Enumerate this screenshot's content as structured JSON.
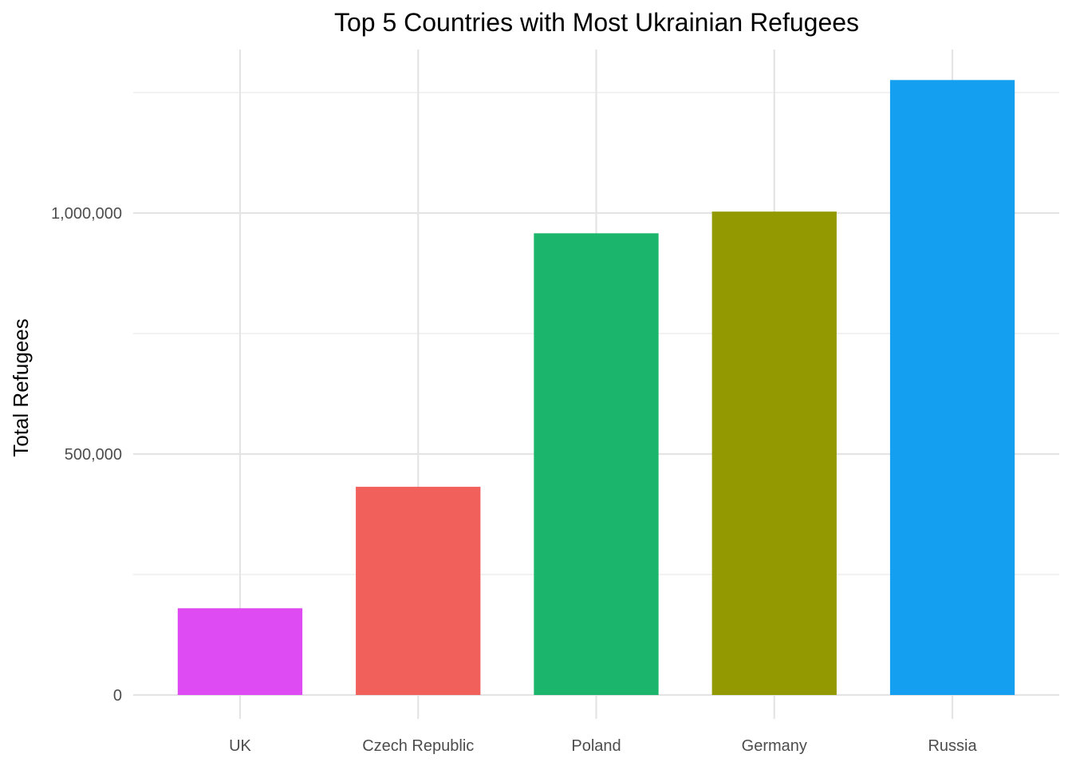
{
  "chart_data": {
    "type": "bar",
    "title": "Top 5 Countries with Most Ukrainian Refugees",
    "xlabel": "",
    "ylabel": "Total Refugees",
    "categories": [
      "UK",
      "Czech Republic",
      "Poland",
      "Germany",
      "Russia"
    ],
    "values": [
      180000,
      432000,
      958000,
      1003000,
      1276000
    ],
    "colors": [
      "#DF4BF2",
      "#F2605C",
      "#1BB66B",
      "#939901",
      "#159FF0"
    ],
    "ylim": [
      0,
      1340000
    ],
    "yticks": [
      0,
      500000,
      1000000
    ],
    "ytick_labels": [
      "0",
      "500,000",
      "1,000,000"
    ],
    "y_minor_ticks": [
      250000,
      750000,
      1250000
    ],
    "grid": true,
    "legend": "none"
  }
}
